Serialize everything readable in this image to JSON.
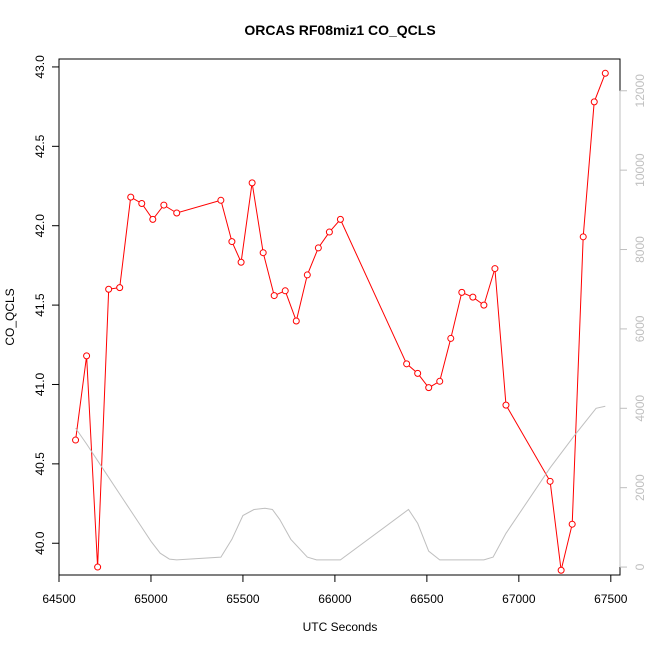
{
  "chart_data": {
    "type": "line",
    "title": "ORCAS RF08miz1 CO_QCLS",
    "xlabel": "UTC Seconds",
    "ylabel": "CO_QCLS",
    "xlim": [
      64500,
      67550
    ],
    "ylim": [
      39.8,
      43.05
    ],
    "y2lim": [
      -200,
      12800
    ],
    "xticks": [
      64500,
      65000,
      65500,
      66000,
      66500,
      67000,
      67500
    ],
    "yticks": [
      40.0,
      40.5,
      41.0,
      41.5,
      42.0,
      42.5,
      43.0
    ],
    "y2ticks": [
      0,
      2000,
      4000,
      6000,
      8000,
      10000,
      12000
    ],
    "xtick_labels": [
      "64500",
      "65000",
      "65500",
      "66000",
      "66500",
      "67000",
      "67500"
    ],
    "ytick_labels": [
      "40.0",
      "40.5",
      "41.0",
      "41.5",
      "42.0",
      "42.5",
      "43.0"
    ],
    "y2tick_labels": [
      "0",
      "2000",
      "4000",
      "6000",
      "8000",
      "10000",
      "12000"
    ],
    "colors": {
      "series": "#ff0000",
      "altitude": "#bfbfbf",
      "axes": "#000000"
    },
    "grid": false,
    "legend": "none",
    "series": [
      {
        "axis": "left",
        "style": "line+points",
        "x": [
          64590,
          64650,
          64710,
          64770,
          64830,
          64890,
          64950,
          65010,
          65070,
          65140,
          65380,
          65440,
          65490,
          65550,
          65610,
          65670,
          65730,
          65790,
          65850,
          65910,
          65970,
          66030,
          66390,
          66450,
          66510,
          66570,
          66630,
          66690,
          66750,
          66810,
          66870,
          66930,
          67170,
          67230,
          67290,
          67350,
          67410,
          67470
        ],
        "values": [
          40.65,
          41.18,
          39.85,
          41.6,
          41.61,
          42.18,
          42.14,
          42.04,
          42.13,
          42.08,
          42.16,
          41.9,
          41.77,
          42.27,
          41.83,
          41.56,
          41.59,
          41.4,
          41.69,
          41.86,
          41.96,
          42.04,
          41.13,
          41.07,
          40.98,
          41.02,
          41.29,
          41.58,
          41.55,
          41.5,
          41.73,
          40.87,
          40.39,
          39.83,
          40.12,
          41.93,
          42.78,
          42.96
        ]
      },
      {
        "axis": "right",
        "style": "line",
        "x": [
          64590,
          64650,
          64750,
          64850,
          64950,
          65000,
          65050,
          65100,
          65140,
          65380,
          65440,
          65500,
          65560,
          65620,
          65660,
          65700,
          65760,
          65850,
          65900,
          66030,
          66400,
          66450,
          66510,
          66570,
          66630,
          66810,
          66860,
          66930,
          67170,
          67300,
          67420,
          67470
        ],
        "values": [
          3500,
          3100,
          2400,
          1700,
          1000,
          650,
          350,
          200,
          180,
          250,
          700,
          1300,
          1450,
          1480,
          1450,
          1200,
          700,
          250,
          180,
          180,
          1450,
          1100,
          400,
          180,
          180,
          180,
          250,
          850,
          2500,
          3300,
          4000,
          4050
        ]
      }
    ]
  }
}
